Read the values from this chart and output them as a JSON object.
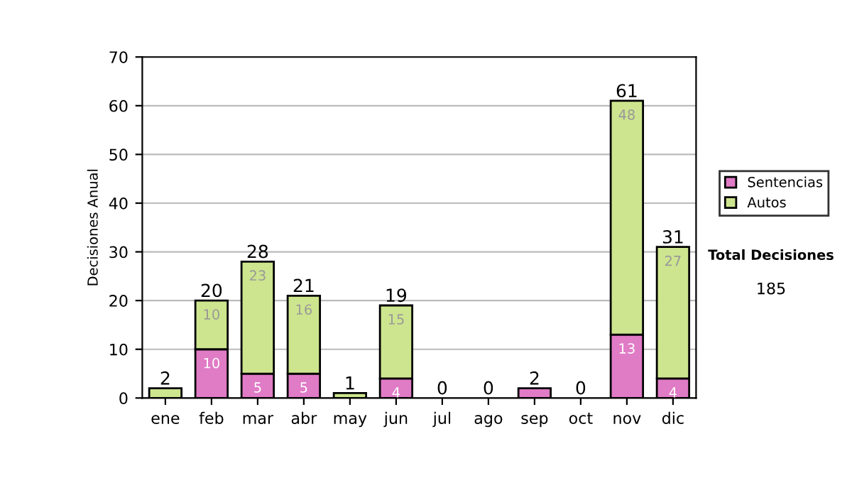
{
  "chart_data": {
    "type": "bar",
    "stacked": true,
    "ylabel": "Decisiones Anual",
    "categories": [
      "ene",
      "feb",
      "mar",
      "abr",
      "may",
      "jun",
      "jul",
      "ago",
      "sep",
      "oct",
      "nov",
      "dic"
    ],
    "series": [
      {
        "name": "Sentencias",
        "color": "#e07bc6",
        "values": [
          0,
          10,
          5,
          5,
          0,
          4,
          0,
          0,
          2,
          0,
          13,
          4
        ],
        "value_labels": [
          null,
          "10",
          "5",
          "5",
          null,
          "4",
          null,
          null,
          null,
          null,
          "13",
          "4"
        ]
      },
      {
        "name": "Autos",
        "color": "#cde58e",
        "values": [
          2,
          10,
          23,
          16,
          1,
          15,
          0,
          0,
          0,
          0,
          48,
          27
        ],
        "value_labels": [
          null,
          "10",
          "23",
          "16",
          null,
          "15",
          null,
          null,
          null,
          null,
          "48",
          "27"
        ]
      }
    ],
    "totals": [
      "2",
      "20",
      "28",
      "21",
      "1",
      "19",
      "0",
      "0",
      "2",
      "0",
      "61",
      "31"
    ],
    "ylim": [
      0,
      70
    ],
    "yticks": [
      0,
      10,
      20,
      30,
      40,
      50,
      60,
      70
    ],
    "grid": "y",
    "legend": "right",
    "annotations": [
      "Total Decisiones",
      "185"
    ]
  }
}
